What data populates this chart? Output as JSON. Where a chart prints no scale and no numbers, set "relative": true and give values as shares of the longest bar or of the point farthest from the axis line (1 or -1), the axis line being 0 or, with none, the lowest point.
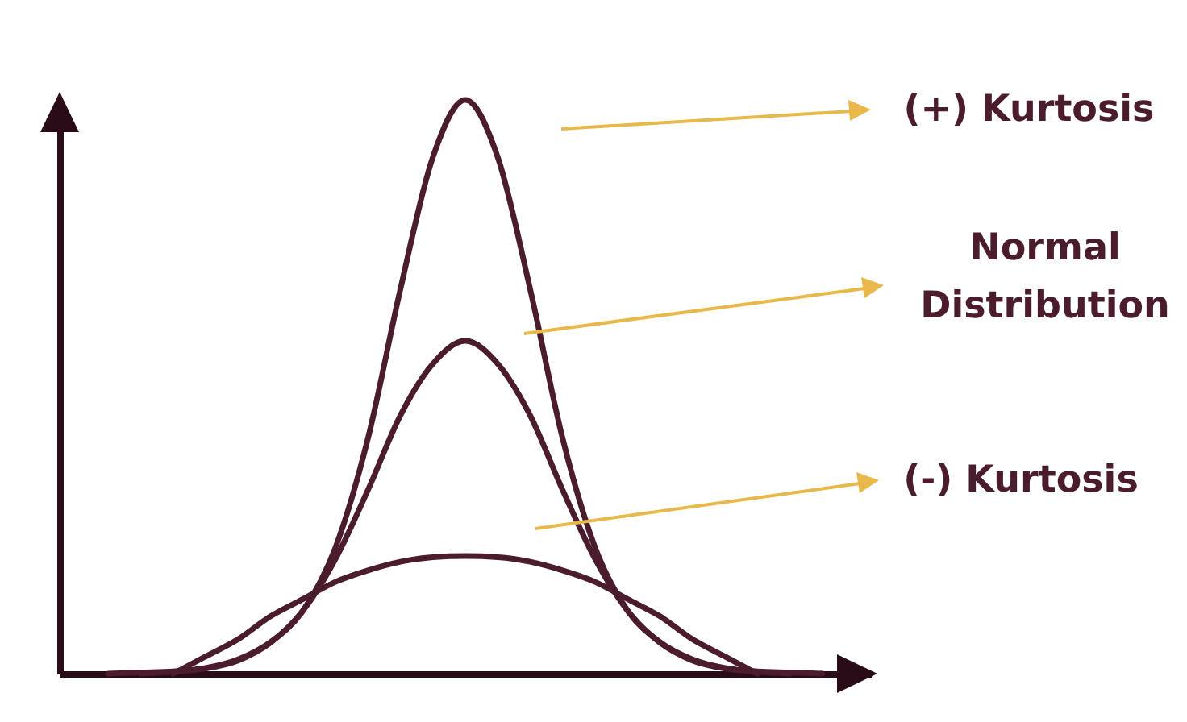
{
  "chart_data": {
    "type": "line",
    "relative": true,
    "marker": "none",
    "line_style": "solid",
    "grid": false,
    "legend": false,
    "categories": [
      null,
      null,
      null,
      null,
      null,
      null,
      null,
      null,
      null,
      null,
      null,
      null,
      null,
      null,
      null,
      null,
      null,
      null,
      null,
      null,
      null,
      null,
      null,
      null,
      null
    ],
    "series": [
      {
        "name": "(+) Kurtosis",
        "color": "#4a1c2e",
        "values": [
          null,
          0,
          0.002,
          0.004,
          0.01,
          0.025,
          0.055,
          0.11,
          0.22,
          0.41,
          0.67,
          0.9,
          1,
          0.9,
          0.67,
          0.41,
          0.22,
          0.11,
          0.055,
          0.025,
          0.01,
          0.004,
          0.002,
          0,
          null
        ]
      },
      {
        "name": "Normal Distribution",
        "color": "#4a1c2e",
        "values": [
          null,
          null,
          0,
          0.003,
          0.009,
          0.023,
          0.054,
          0.11,
          0.2,
          0.32,
          0.45,
          0.54,
          0.58,
          0.54,
          0.45,
          0.32,
          0.2,
          0.11,
          0.054,
          0.023,
          0.009,
          0.003,
          0,
          null,
          null
        ]
      },
      {
        "name": "(-) Kurtosis",
        "color": "#4a1c2e",
        "values": [
          null,
          null,
          null,
          0,
          0.03,
          0.06,
          0.1,
          0.13,
          0.16,
          0.18,
          0.195,
          0.203,
          0.205,
          0.203,
          0.195,
          0.18,
          0.16,
          0.13,
          0.1,
          0.06,
          0.03,
          0,
          null,
          null,
          null
        ]
      }
    ]
  }
}
